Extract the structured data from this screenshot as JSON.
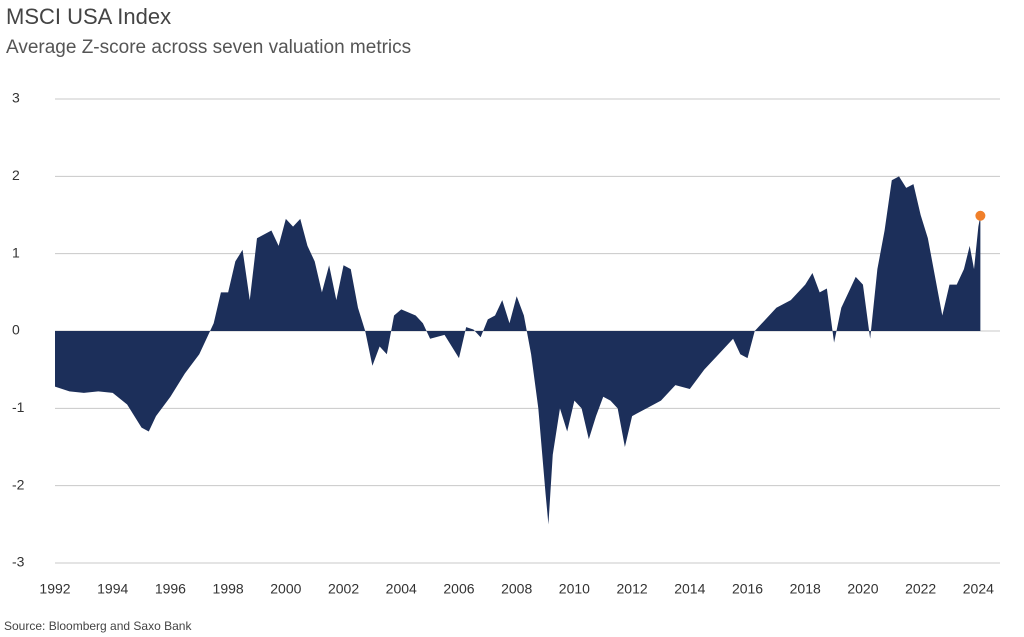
{
  "chart_data": {
    "type": "area",
    "title": "MSCI USA Index",
    "subtitle": "Average Z-score across seven valuation metrics",
    "source": "Source: Bloomberg and Saxo Bank",
    "x": [
      1992,
      1992.5,
      1993,
      1993.5,
      1994,
      1994.5,
      1995,
      1995.25,
      1995.5,
      1996,
      1996.5,
      1997,
      1997.25,
      1997.5,
      1997.75,
      1998,
      1998.25,
      1998.5,
      1998.75,
      1999,
      1999.5,
      1999.75,
      2000,
      2000.25,
      2000.5,
      2000.75,
      2001,
      2001.25,
      2001.5,
      2001.75,
      2002,
      2002.25,
      2002.5,
      2002.75,
      2003,
      2003.25,
      2003.5,
      2003.75,
      2004,
      2004.5,
      2004.75,
      2005,
      2005.5,
      2005.75,
      2006,
      2006.25,
      2006.5,
      2006.75,
      2007,
      2007.25,
      2007.5,
      2007.75,
      2008,
      2008.25,
      2008.5,
      2008.75,
      2009,
      2009.1,
      2009.25,
      2009.5,
      2009.75,
      2010,
      2010.25,
      2010.5,
      2010.75,
      2011,
      2011.25,
      2011.5,
      2011.75,
      2012,
      2012.5,
      2013,
      2013.5,
      2014,
      2014.5,
      2015,
      2015.5,
      2015.75,
      2016,
      2016.25,
      2016.5,
      2017,
      2017.5,
      2018,
      2018.25,
      2018.5,
      2018.75,
      2019,
      2019.25,
      2019.5,
      2019.75,
      2020,
      2020.25,
      2020.5,
      2020.75,
      2021,
      2021.25,
      2021.5,
      2021.75,
      2022,
      2022.25,
      2022.5,
      2022.75,
      2023,
      2023.25,
      2023.5,
      2023.7,
      2023.85,
      2024,
      2024.07
    ],
    "values": [
      -0.72,
      -0.78,
      -0.8,
      -0.78,
      -0.8,
      -0.95,
      -1.25,
      -1.3,
      -1.1,
      -0.85,
      -0.55,
      -0.3,
      -0.1,
      0.1,
      0.5,
      0.5,
      0.9,
      1.05,
      0.4,
      1.2,
      1.3,
      1.1,
      1.45,
      1.35,
      1.45,
      1.1,
      0.9,
      0.5,
      0.85,
      0.4,
      0.85,
      0.8,
      0.3,
      0,
      -0.45,
      -0.2,
      -0.3,
      0.2,
      0.28,
      0.2,
      0.1,
      -0.1,
      -0.05,
      -0.2,
      -0.35,
      0.05,
      0.02,
      -0.08,
      0.15,
      0.2,
      0.4,
      0.1,
      0.45,
      0.2,
      -0.3,
      -1.0,
      -2.1,
      -2.5,
      -1.6,
      -1.0,
      -1.3,
      -0.9,
      -1.0,
      -1.4,
      -1.1,
      -0.85,
      -0.9,
      -1.0,
      -1.5,
      -1.1,
      -1.0,
      -0.9,
      -0.7,
      -0.75,
      -0.5,
      -0.3,
      -0.1,
      -0.3,
      -0.35,
      0,
      0.1,
      0.3,
      0.4,
      0.6,
      0.75,
      0.5,
      0.55,
      -0.15,
      0.3,
      0.5,
      0.7,
      0.6,
      -0.1,
      0.8,
      1.3,
      1.95,
      2.0,
      1.85,
      1.9,
      1.5,
      1.2,
      0.7,
      0.2,
      0.6,
      0.6,
      0.8,
      1.1,
      0.8,
      1.35,
      1.49
    ],
    "color": "#1c2f5a",
    "highlight_last_color": "#f07f2a",
    "xlim": [
      1992,
      2024.75
    ],
    "xticks": [
      1992,
      1994,
      1996,
      1998,
      2000,
      2002,
      2004,
      2006,
      2008,
      2010,
      2012,
      2014,
      2016,
      2018,
      2020,
      2022,
      2024
    ],
    "ylim": [
      -3,
      3
    ],
    "yticks": [
      -3,
      -2,
      -1,
      0,
      1,
      2,
      3
    ],
    "grid": true
  }
}
